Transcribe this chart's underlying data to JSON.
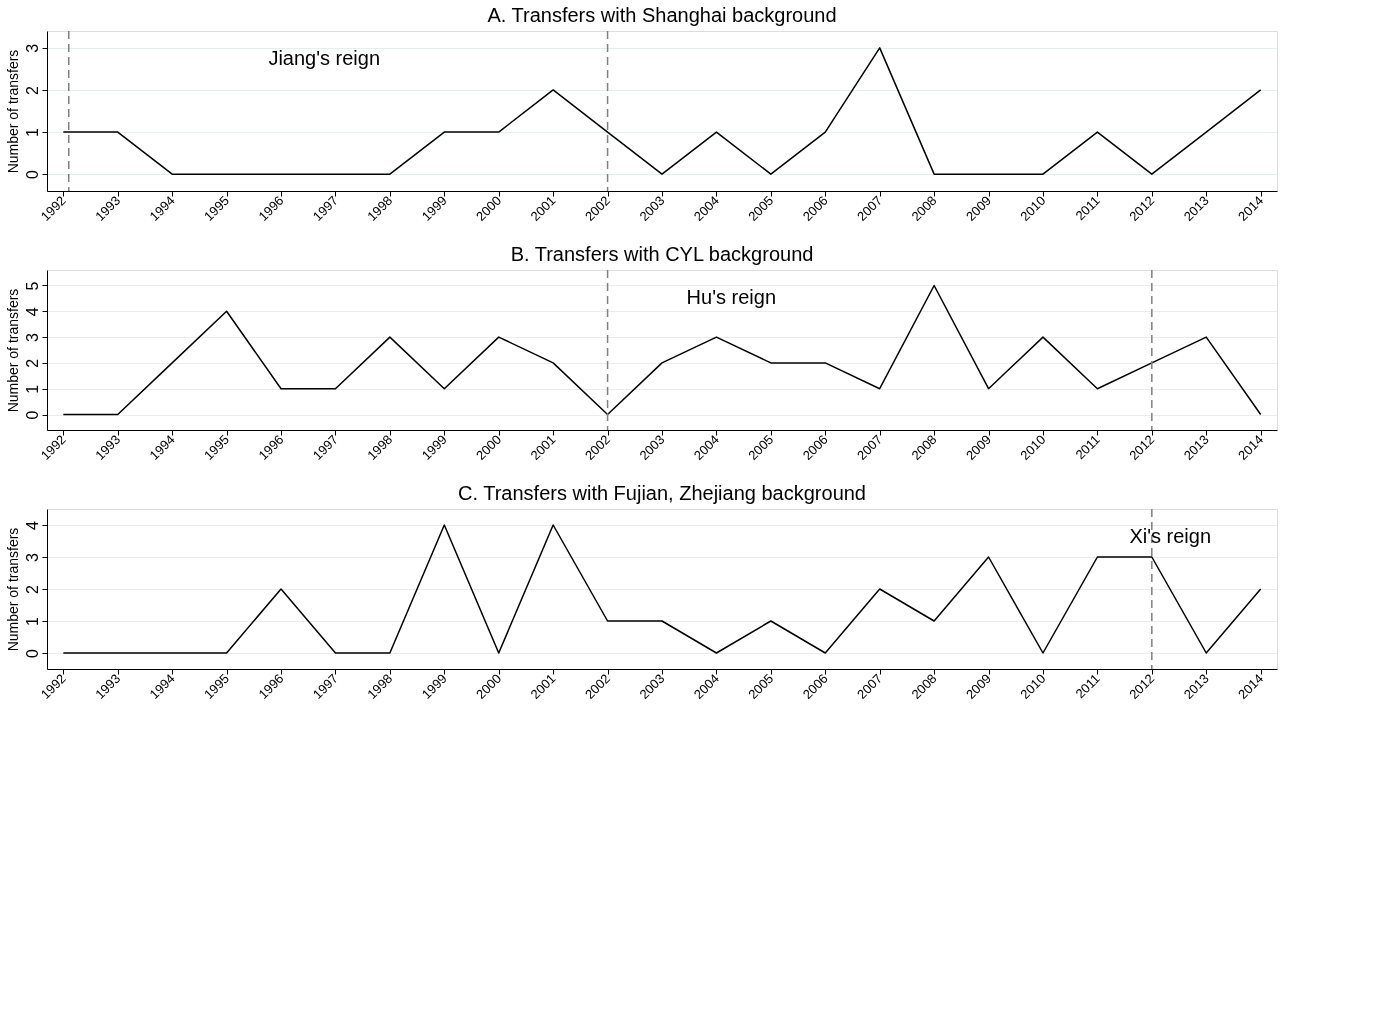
{
  "chart_data": [
    {
      "type": "line",
      "title": "A. Transfers with Shanghai background",
      "ylabel": "Number of transfers",
      "x": [
        1992,
        1993,
        1994,
        1995,
        1996,
        1997,
        1998,
        1999,
        2000,
        2001,
        2002,
        2003,
        2004,
        2005,
        2006,
        2007,
        2008,
        2009,
        2010,
        2011,
        2012,
        2013,
        2014
      ],
      "series": [
        {
          "color": "#000000",
          "values": [
            1,
            1,
            0,
            0,
            0,
            0,
            0,
            1,
            1,
            2,
            1,
            0,
            1,
            0,
            1,
            3,
            0,
            0,
            0,
            1,
            0,
            1,
            2
          ]
        }
      ],
      "xlim": [
        1991.7,
        2014.3
      ],
      "xticks": [
        1992,
        1993,
        1994,
        1995,
        1996,
        1997,
        1998,
        1999,
        2000,
        2001,
        2002,
        2003,
        2004,
        2005,
        2006,
        2007,
        2008,
        2009,
        2010,
        2011,
        2012,
        2013,
        2014
      ],
      "ylim": [
        -0.4,
        3.4
      ],
      "yticks": [
        0,
        1,
        2,
        3
      ],
      "grid": "y",
      "line_style": "solid",
      "marker": "none",
      "ref_lines": [
        {
          "axis": "x",
          "value": 1992.1,
          "color": "#808080",
          "line_style": "dashed"
        },
        {
          "axis": "x",
          "value": 2002,
          "color": "#808080",
          "line_style": "dashed"
        }
      ],
      "annotations": [
        "Jiang's reign"
      ]
    },
    {
      "type": "line",
      "title": "B. Transfers with CYL background",
      "ylabel": "Number of transfers",
      "x": [
        1992,
        1993,
        1994,
        1995,
        1996,
        1997,
        1998,
        1999,
        2000,
        2001,
        2002,
        2003,
        2004,
        2005,
        2006,
        2007,
        2008,
        2009,
        2010,
        2011,
        2012,
        2013,
        2014
      ],
      "series": [
        {
          "color": "#000000",
          "values": [
            0,
            0,
            2,
            4,
            1,
            1,
            3,
            1,
            3,
            2,
            0,
            2,
            3,
            2,
            2,
            1,
            5,
            1,
            3,
            1,
            2,
            3,
            0
          ]
        }
      ],
      "xlim": [
        1991.7,
        2014.3
      ],
      "xticks": [
        1992,
        1993,
        1994,
        1995,
        1996,
        1997,
        1998,
        1999,
        2000,
        2001,
        2002,
        2003,
        2004,
        2005,
        2006,
        2007,
        2008,
        2009,
        2010,
        2011,
        2012,
        2013,
        2014
      ],
      "ylim": [
        -0.6,
        5.6
      ],
      "yticks": [
        0,
        1,
        2,
        3,
        4,
        5
      ],
      "grid": "y",
      "line_style": "solid",
      "marker": "none",
      "ref_lines": [
        {
          "axis": "x",
          "value": 2002,
          "color": "#808080",
          "line_style": "dashed"
        },
        {
          "axis": "x",
          "value": 2012,
          "color": "#808080",
          "line_style": "dashed"
        }
      ],
      "annotations": [
        "Hu's reign"
      ]
    },
    {
      "type": "line",
      "title": "C. Transfers with Fujian, Zhejiang background",
      "ylabel": "Number of transfers",
      "x": [
        1992,
        1993,
        1994,
        1995,
        1996,
        1997,
        1998,
        1999,
        2000,
        2001,
        2002,
        2003,
        2004,
        2005,
        2006,
        2007,
        2008,
        2009,
        2010,
        2011,
        2012,
        2013,
        2014
      ],
      "series": [
        {
          "color": "#000000",
          "values": [
            0,
            0,
            0,
            0,
            2,
            0,
            0,
            4,
            0,
            4,
            1,
            1,
            0,
            1,
            0,
            2,
            1,
            3,
            0,
            3,
            3,
            0,
            2
          ]
        }
      ],
      "xlim": [
        1991.7,
        2014.3
      ],
      "xticks": [
        1992,
        1993,
        1994,
        1995,
        1996,
        1997,
        1998,
        1999,
        2000,
        2001,
        2002,
        2003,
        2004,
        2005,
        2006,
        2007,
        2008,
        2009,
        2010,
        2011,
        2012,
        2013,
        2014
      ],
      "ylim": [
        -0.5,
        4.5
      ],
      "yticks": [
        0,
        1,
        2,
        3,
        4
      ],
      "grid": "y",
      "line_style": "solid",
      "marker": "none",
      "ref_lines": [
        {
          "axis": "x",
          "value": 2012,
          "color": "#808080",
          "line_style": "dashed"
        }
      ],
      "annotations": [
        "Xi's reign"
      ]
    }
  ]
}
